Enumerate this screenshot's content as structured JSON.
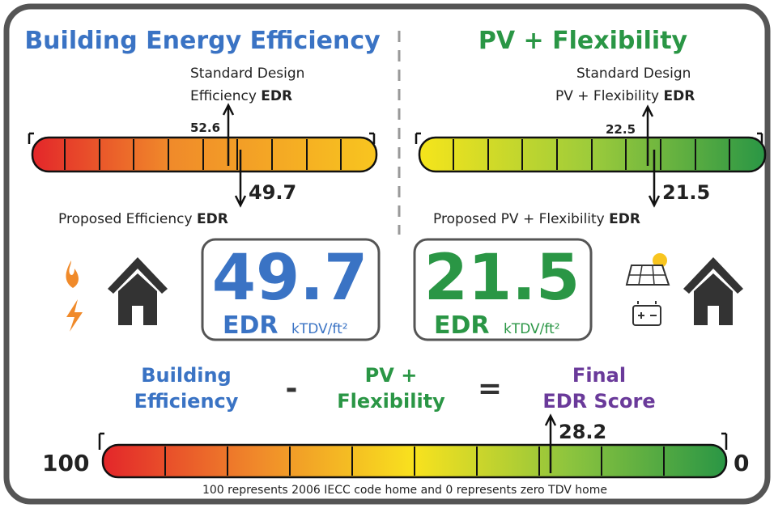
{
  "left": {
    "title": "Building Energy Efficiency",
    "standard": {
      "line1": "Standard Design",
      "line2": "Efficiency",
      "bold": "EDR",
      "value": "52.6"
    },
    "proposed": {
      "text": "Proposed Efficiency",
      "bold": "EDR",
      "value": "49.7"
    },
    "box": {
      "value": "49.7",
      "label": "EDR",
      "unit": "kTDV/ft²"
    }
  },
  "right": {
    "title": "PV + Flexibility",
    "standard": {
      "line1": "Standard Design",
      "line2": "PV + Flexibility",
      "bold": "EDR",
      "value": "22.5"
    },
    "proposed": {
      "text": "Proposed PV + Flexibility",
      "bold": "EDR",
      "value": "21.5"
    },
    "box": {
      "value": "21.5",
      "label": "EDR",
      "unit": "kTDV/ft²"
    }
  },
  "equation": {
    "term1": [
      "Building",
      "Efficiency"
    ],
    "minus": "-",
    "term2": [
      "PV +",
      "Flexibility"
    ],
    "equals": "=",
    "result": [
      "Final",
      "EDR Score"
    ]
  },
  "scale": {
    "max": "100",
    "min": "0",
    "final": "28.2",
    "note": "100 represents 2006 IECC code home and 0 represents zero TDV home"
  }
}
